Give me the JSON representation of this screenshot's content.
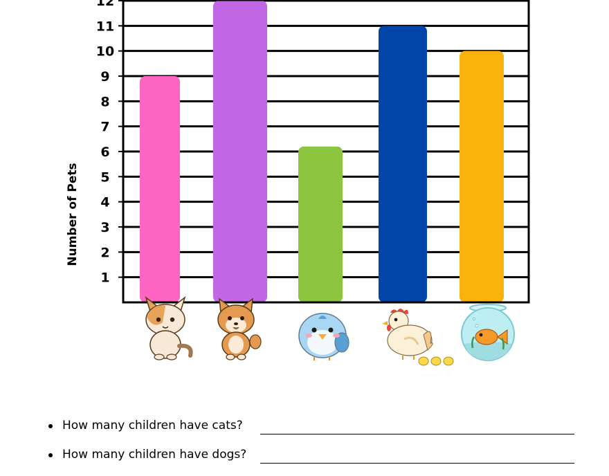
{
  "chart_data": {
    "type": "bar",
    "ylabel": "Number of Pets",
    "xlabel": "",
    "title": "",
    "ylim": [
      0,
      12
    ],
    "yticks": [
      1,
      2,
      3,
      4,
      5,
      6,
      7,
      8,
      9,
      10,
      11,
      12
    ],
    "grid": true,
    "categories": [
      "cat-icon",
      "dog-icon",
      "bird-icon",
      "chicken-icon",
      "fish-icon"
    ],
    "values": [
      9,
      12,
      6.2,
      11,
      10
    ],
    "colors": [
      "#ff66c4",
      "#c167e6",
      "#8cc540",
      "#0045a8",
      "#f9b30b"
    ]
  },
  "questions": [
    {
      "text": "How many children have cats?"
    },
    {
      "text": "How many children have dogs?"
    }
  ]
}
